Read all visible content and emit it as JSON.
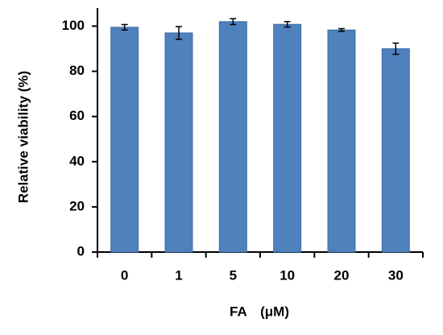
{
  "chart_data": {
    "type": "bar",
    "x_label": "FA　(μM)",
    "y_label": "Relative viability (%)",
    "categories": [
      "0",
      "1",
      "5",
      "10",
      "20",
      "30"
    ],
    "series": [
      {
        "name": "Relative viability",
        "color": "#4f81bd",
        "values": [
          99.5,
          97,
          102,
          100.8,
          98.3,
          90
        ],
        "errors": [
          1.2,
          2.8,
          1.3,
          1.2,
          0.6,
          2.5
        ]
      }
    ],
    "ylim": [
      0,
      108
    ],
    "yticks": [
      0,
      20,
      40,
      60,
      80,
      100
    ],
    "grid": false
  }
}
